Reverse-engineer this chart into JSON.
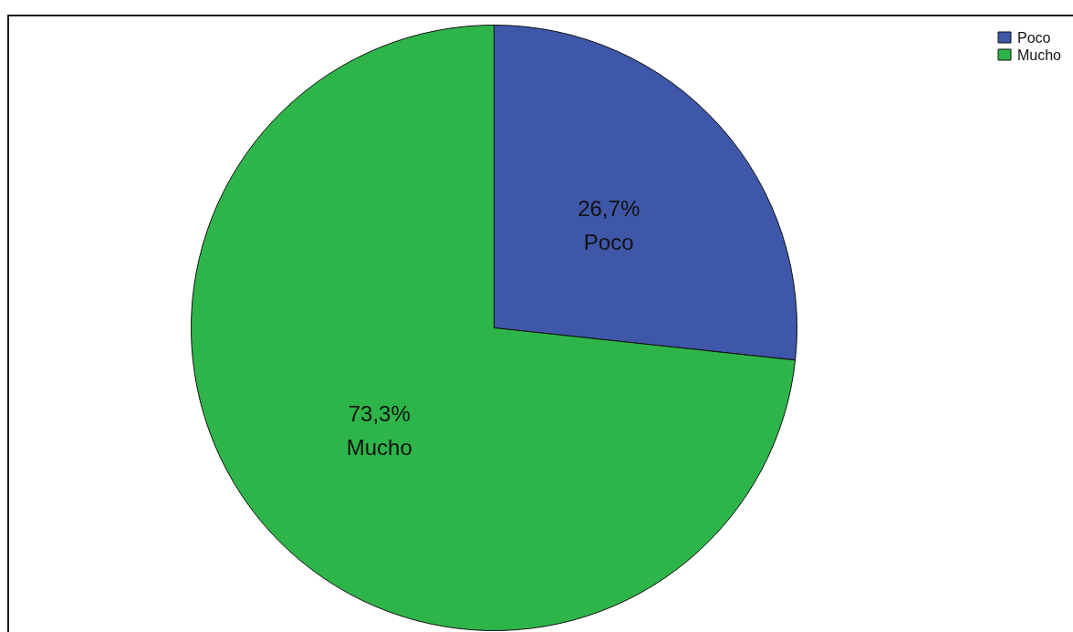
{
  "chart_data": {
    "type": "pie",
    "categories": [
      "Poco",
      "Mucho"
    ],
    "values": [
      26.7,
      73.3
    ],
    "colors": [
      "#3f57a8",
      "#2eb54a"
    ],
    "value_labels": [
      "26,7%",
      "73,3%"
    ],
    "legend": "top right"
  }
}
